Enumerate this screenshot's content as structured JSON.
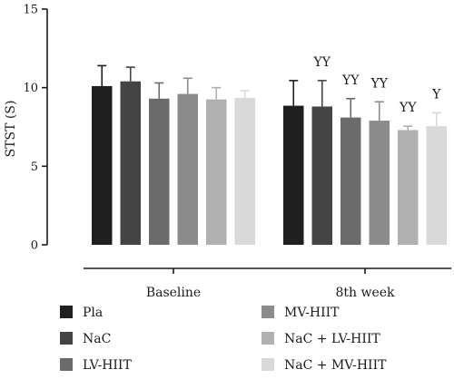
{
  "chart_data": {
    "type": "bar",
    "ylabel": "STST (S)",
    "ylim": [
      0,
      15
    ],
    "yticks": [
      0,
      5,
      10,
      15
    ],
    "categories": [
      "Baseline",
      "8th week"
    ],
    "grid": false,
    "legend_position": "bottom",
    "series": [
      {
        "name": "Pla",
        "color": "#1f1f1f",
        "values": [
          10.1,
          8.85
        ],
        "errors": [
          1.3,
          1.6
        ],
        "annotations": [
          "",
          ""
        ]
      },
      {
        "name": "NaC",
        "color": "#444444",
        "values": [
          10.4,
          8.8
        ],
        "errors": [
          0.9,
          1.65
        ],
        "annotations": [
          "",
          "YY"
        ]
      },
      {
        "name": "LV-HIIT",
        "color": "#6b6b6b",
        "values": [
          9.3,
          8.1
        ],
        "errors": [
          1.0,
          1.2
        ],
        "annotations": [
          "",
          "YY"
        ]
      },
      {
        "name": "MV-HIIT",
        "color": "#8c8c8c",
        "values": [
          9.6,
          7.9
        ],
        "errors": [
          1.0,
          1.2
        ],
        "annotations": [
          "",
          "YY"
        ]
      },
      {
        "name": "NaC + LV-HIIT",
        "color": "#b0b0b0",
        "values": [
          9.25,
          7.3
        ],
        "errors": [
          0.75,
          0.25
        ],
        "annotations": [
          "",
          "YY"
        ]
      },
      {
        "name": "NaC + MV-HIIT",
        "color": "#d9d9d9",
        "values": [
          9.35,
          7.55
        ],
        "errors": [
          0.45,
          0.85
        ],
        "annotations": [
          "",
          "Y"
        ]
      }
    ]
  }
}
